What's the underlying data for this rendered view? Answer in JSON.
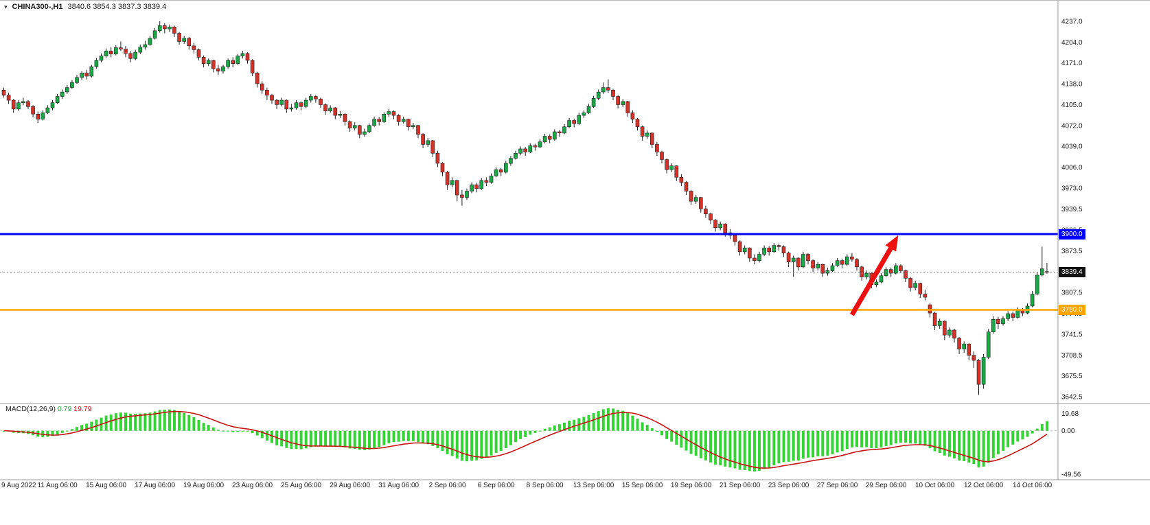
{
  "header": {
    "symbol_timeframe": "CHINA300-,H1",
    "ohlc": "3840.6 3854.3 3837.3 3839.4"
  },
  "macd": {
    "name": "MACD(12,26,9)",
    "value_main": "0.79",
    "value_signal": "19.79"
  },
  "colors": {
    "bull": "#18a846",
    "bear": "#d5322a",
    "wick": "#1f1f1f",
    "macd_hist": "#33d433",
    "macd_signal": "#c81414",
    "resistance": "#0000ff",
    "support": "#ffa500",
    "arrow": "#ee1010",
    "axis_text": "#1a1a1a",
    "separator": "#999999",
    "zero_line": "#c0c0c0",
    "last_price_line": "#707070"
  },
  "chart_data": {
    "type": "candlestick",
    "symbol": "CHINA300-",
    "timeframe": "H1",
    "last_price": 3839.4,
    "last_price_label": "3839.4",
    "price_axis_ticks": [
      4237.0,
      4204.0,
      4171.0,
      4138.0,
      4105.0,
      4072.0,
      4039.0,
      4006.0,
      3973.0,
      3939.5,
      3906.5,
      3873.5,
      3840.5,
      3807.5,
      3774.5,
      3741.5,
      3708.5,
      3675.5,
      3642.5
    ],
    "hlines": [
      {
        "price": 3900.0,
        "label": "3900.0",
        "color": "#0000ff",
        "name": "resistance-line"
      },
      {
        "price": 3780.0,
        "label": "3780.0",
        "color": "#ffa500",
        "name": "support-line"
      }
    ],
    "macd": {
      "params": "12,26,9",
      "ticks": [
        {
          "v": 19.68,
          "label": "19.68"
        },
        {
          "v": 0.0,
          "label": "0.00"
        },
        {
          "v": -49.56,
          "label": "-49.56"
        }
      ]
    },
    "annotation_arrow": {
      "from_bar": 174,
      "from_price": 3772,
      "to_bar": 183.5,
      "to_price": 3898,
      "color": "#ee1010"
    },
    "time_labels": [
      {
        "t": "9 Aug 2022",
        "bar": 1
      },
      {
        "t": "11 Aug 06:00",
        "bar": 11
      },
      {
        "t": "15 Aug 06:00",
        "bar": 21
      },
      {
        "t": "17 Aug 06:00",
        "bar": 31
      },
      {
        "t": "19 Aug 06:00",
        "bar": 41
      },
      {
        "t": "23 Aug 06:00",
        "bar": 51
      },
      {
        "t": "25 Aug 06:00",
        "bar": 61
      },
      {
        "t": "29 Aug 06:00",
        "bar": 71
      },
      {
        "t": "31 Aug 06:00",
        "bar": 81
      },
      {
        "t": "2 Sep 06:00",
        "bar": 91
      },
      {
        "t": "6 Sep 06:00",
        "bar": 101
      },
      {
        "t": "8 Sep 06:00",
        "bar": 111
      },
      {
        "t": "13 Sep 06:00",
        "bar": 121
      },
      {
        "t": "15 Sep 06:00",
        "bar": 131
      },
      {
        "t": "19 Sep 06:00",
        "bar": 141
      },
      {
        "t": "21 Sep 06:00",
        "bar": 151
      },
      {
        "t": "23 Sep 06:00",
        "bar": 161
      },
      {
        "t": "27 Sep 06:00",
        "bar": 171
      },
      {
        "t": "29 Sep 06:00",
        "bar": 181
      },
      {
        "t": "10 Oct 06:00",
        "bar": 191
      },
      {
        "t": "12 Oct 06:00",
        "bar": 201
      },
      {
        "t": "14 Oct 06:00",
        "bar": 211
      }
    ],
    "candles": [
      [
        4128,
        4132,
        4116,
        4120
      ],
      [
        4120,
        4124,
        4106,
        4112
      ],
      [
        4112,
        4114,
        4092,
        4098
      ],
      [
        4098,
        4112,
        4095,
        4108
      ],
      [
        4108,
        4116,
        4104,
        4110
      ],
      [
        4110,
        4112,
        4098,
        4102
      ],
      [
        4102,
        4104,
        4085,
        4090
      ],
      [
        4090,
        4094,
        4076,
        4082
      ],
      [
        4082,
        4096,
        4080,
        4092
      ],
      [
        4092,
        4104,
        4090,
        4100
      ],
      [
        4100,
        4112,
        4096,
        4108
      ],
      [
        4108,
        4122,
        4106,
        4118
      ],
      [
        4118,
        4129,
        4114,
        4125
      ],
      [
        4125,
        4136,
        4122,
        4132
      ],
      [
        4132,
        4144,
        4130,
        4140
      ],
      [
        4140,
        4152,
        4138,
        4148
      ],
      [
        4148,
        4158,
        4144,
        4155
      ],
      [
        4155,
        4160,
        4145,
        4150
      ],
      [
        4150,
        4168,
        4148,
        4165
      ],
      [
        4165,
        4179,
        4162,
        4175
      ],
      [
        4175,
        4186,
        4172,
        4182
      ],
      [
        4182,
        4194,
        4179,
        4190
      ],
      [
        4190,
        4196,
        4180,
        4185
      ],
      [
        4185,
        4199,
        4183,
        4195
      ],
      [
        4195,
        4205,
        4190,
        4193
      ],
      [
        4193,
        4198,
        4180,
        4186
      ],
      [
        4186,
        4190,
        4172,
        4178
      ],
      [
        4178,
        4192,
        4175,
        4188
      ],
      [
        4188,
        4200,
        4185,
        4196
      ],
      [
        4196,
        4206,
        4192,
        4200
      ],
      [
        4200,
        4214,
        4198,
        4210
      ],
      [
        4210,
        4226,
        4208,
        4222
      ],
      [
        4222,
        4237,
        4219,
        4230
      ],
      [
        4230,
        4234,
        4218,
        4225
      ],
      [
        4225,
        4232,
        4220,
        4228
      ],
      [
        4228,
        4230,
        4212,
        4218
      ],
      [
        4218,
        4220,
        4200,
        4205
      ],
      [
        4205,
        4214,
        4201,
        4210
      ],
      [
        4210,
        4212,
        4192,
        4198
      ],
      [
        4198,
        4203,
        4186,
        4192
      ],
      [
        4192,
        4194,
        4175,
        4180
      ],
      [
        4180,
        4183,
        4164,
        4170
      ],
      [
        4170,
        4178,
        4166,
        4175
      ],
      [
        4175,
        4176,
        4156,
        4162
      ],
      [
        4162,
        4168,
        4152,
        4158
      ],
      [
        4158,
        4168,
        4154,
        4165
      ],
      [
        4165,
        4178,
        4162,
        4175
      ],
      [
        4175,
        4180,
        4164,
        4170
      ],
      [
        4170,
        4185,
        4168,
        4182
      ],
      [
        4182,
        4190,
        4178,
        4186
      ],
      [
        4186,
        4188,
        4170,
        4175
      ],
      [
        4175,
        4177,
        4150,
        4155
      ],
      [
        4155,
        4157,
        4132,
        4138
      ],
      [
        4138,
        4142,
        4122,
        4128
      ],
      [
        4128,
        4132,
        4112,
        4120
      ],
      [
        4120,
        4122,
        4106,
        4112
      ],
      [
        4112,
        4114,
        4098,
        4105
      ],
      [
        4105,
        4116,
        4102,
        4112
      ],
      [
        4112,
        4113,
        4092,
        4098
      ],
      [
        4098,
        4106,
        4094,
        4100
      ],
      [
        4100,
        4112,
        4097,
        4108
      ],
      [
        4108,
        4110,
        4096,
        4102
      ],
      [
        4102,
        4116,
        4100,
        4112
      ],
      [
        4112,
        4122,
        4108,
        4118
      ],
      [
        4118,
        4120,
        4108,
        4114
      ],
      [
        4114,
        4116,
        4100,
        4105
      ],
      [
        4105,
        4107,
        4089,
        4095
      ],
      [
        4095,
        4104,
        4092,
        4100
      ],
      [
        4100,
        4101,
        4082,
        4088
      ],
      [
        4088,
        4095,
        4084,
        4090
      ],
      [
        4090,
        4091,
        4072,
        4078
      ],
      [
        4078,
        4080,
        4062,
        4068
      ],
      [
        4068,
        4077,
        4064,
        4072
      ],
      [
        4072,
        4073,
        4052,
        4058
      ],
      [
        4058,
        4067,
        4054,
        4062
      ],
      [
        4062,
        4075,
        4060,
        4072
      ],
      [
        4072,
        4086,
        4070,
        4082
      ],
      [
        4082,
        4085,
        4072,
        4078
      ],
      [
        4078,
        4093,
        4076,
        4090
      ],
      [
        4090,
        4098,
        4086,
        4094
      ],
      [
        4094,
        4096,
        4082,
        4088
      ],
      [
        4088,
        4090,
        4072,
        4078
      ],
      [
        4078,
        4086,
        4075,
        4082
      ],
      [
        4082,
        4083,
        4064,
        4070
      ],
      [
        4070,
        4076,
        4066,
        4072
      ],
      [
        4072,
        4073,
        4052,
        4058
      ],
      [
        4058,
        4060,
        4036,
        4042
      ],
      [
        4042,
        4052,
        4038,
        4048
      ],
      [
        4048,
        4049,
        4022,
        4028
      ],
      [
        4028,
        4032,
        4006,
        4012
      ],
      [
        4012,
        4014,
        3992,
        3998
      ],
      [
        3998,
        4000,
        3970,
        3978
      ],
      [
        3978,
        3990,
        3974,
        3985
      ],
      [
        3985,
        3986,
        3952,
        3962
      ],
      [
        3962,
        3970,
        3945,
        3958
      ],
      [
        3958,
        3972,
        3954,
        3968
      ],
      [
        3968,
        3982,
        3965,
        3978
      ],
      [
        3978,
        3981,
        3966,
        3972
      ],
      [
        3972,
        3989,
        3970,
        3985
      ],
      [
        3985,
        3990,
        3976,
        3982
      ],
      [
        3982,
        3996,
        3980,
        3992
      ],
      [
        3992,
        4006,
        3990,
        4002
      ],
      [
        4002,
        4005,
        3992,
        3998
      ],
      [
        3998,
        4016,
        3996,
        4012
      ],
      [
        4012,
        4024,
        4008,
        4020
      ],
      [
        4020,
        4032,
        4018,
        4028
      ],
      [
        4028,
        4039,
        4025,
        4035
      ],
      [
        4035,
        4038,
        4024,
        4030
      ],
      [
        4030,
        4044,
        4028,
        4040
      ],
      [
        4040,
        4043,
        4032,
        4038
      ],
      [
        4038,
        4050,
        4036,
        4046
      ],
      [
        4046,
        4059,
        4044,
        4055
      ],
      [
        4055,
        4058,
        4044,
        4050
      ],
      [
        4050,
        4066,
        4048,
        4062
      ],
      [
        4062,
        4065,
        4054,
        4060
      ],
      [
        4060,
        4074,
        4058,
        4070
      ],
      [
        4070,
        4084,
        4068,
        4080
      ],
      [
        4080,
        4083,
        4069,
        4075
      ],
      [
        4075,
        4092,
        4073,
        4088
      ],
      [
        4088,
        4096,
        4084,
        4092
      ],
      [
        4092,
        4106,
        4090,
        4102
      ],
      [
        4102,
        4119,
        4100,
        4115
      ],
      [
        4115,
        4129,
        4112,
        4125
      ],
      [
        4125,
        4140,
        4122,
        4132
      ],
      [
        4132,
        4145,
        4124,
        4128
      ],
      [
        4128,
        4130,
        4112,
        4118
      ],
      [
        4118,
        4120,
        4099,
        4105
      ],
      [
        4105,
        4114,
        4101,
        4110
      ],
      [
        4110,
        4111,
        4086,
        4092
      ],
      [
        4092,
        4096,
        4076,
        4082
      ],
      [
        4082,
        4084,
        4064,
        4070
      ],
      [
        4070,
        4072,
        4048,
        4055
      ],
      [
        4055,
        4064,
        4051,
        4060
      ],
      [
        4060,
        4061,
        4036,
        4042
      ],
      [
        4042,
        4046,
        4024,
        4030
      ],
      [
        4030,
        4032,
        4012,
        4018
      ],
      [
        4018,
        4020,
        3996,
        4002
      ],
      [
        4002,
        4012,
        3998,
        4008
      ],
      [
        4008,
        4009,
        3984,
        3990
      ],
      [
        3990,
        3995,
        3976,
        3982
      ],
      [
        3982,
        3984,
        3962,
        3968
      ],
      [
        3968,
        3970,
        3946,
        3952
      ],
      [
        3952,
        3962,
        3948,
        3958
      ],
      [
        3958,
        3959,
        3934,
        3940
      ],
      [
        3940,
        3945,
        3926,
        3932
      ],
      [
        3932,
        3934,
        3916,
        3922
      ],
      [
        3922,
        3924,
        3904,
        3910
      ],
      [
        3910,
        3920,
        3906,
        3916
      ],
      [
        3916,
        3917,
        3896,
        3902
      ],
      [
        3902,
        3908,
        3892,
        3898
      ],
      [
        3898,
        3900,
        3882,
        3888
      ],
      [
        3888,
        3890,
        3866,
        3872
      ],
      [
        3872,
        3882,
        3868,
        3878
      ],
      [
        3878,
        3879,
        3856,
        3862
      ],
      [
        3862,
        3868,
        3852,
        3858
      ],
      [
        3858,
        3872,
        3855,
        3868
      ],
      [
        3868,
        3882,
        3865,
        3878
      ],
      [
        3878,
        3881,
        3866,
        3872
      ],
      [
        3872,
        3886,
        3870,
        3882
      ],
      [
        3882,
        3885,
        3874,
        3880
      ],
      [
        3880,
        3882,
        3864,
        3870
      ],
      [
        3870,
        3872,
        3848,
        3856
      ],
      [
        3856,
        3866,
        3832,
        3862
      ],
      [
        3862,
        3863,
        3842,
        3848
      ],
      [
        3848,
        3872,
        3846,
        3868
      ],
      [
        3868,
        3870,
        3852,
        3858
      ],
      [
        3858,
        3860,
        3840,
        3846
      ],
      [
        3846,
        3856,
        3842,
        3852
      ],
      [
        3852,
        3853,
        3832,
        3838
      ],
      [
        3838,
        3847,
        3834,
        3842
      ],
      [
        3842,
        3854,
        3840,
        3850
      ],
      [
        3850,
        3862,
        3848,
        3858
      ],
      [
        3858,
        3861,
        3846,
        3852
      ],
      [
        3852,
        3868,
        3850,
        3864
      ],
      [
        3864,
        3870,
        3856,
        3860
      ],
      [
        3860,
        3862,
        3842,
        3848
      ],
      [
        3848,
        3850,
        3826,
        3832
      ],
      [
        3832,
        3842,
        3828,
        3838
      ],
      [
        3838,
        3839,
        3814,
        3820
      ],
      [
        3820,
        3828,
        3816,
        3824
      ],
      [
        3824,
        3838,
        3822,
        3834
      ],
      [
        3834,
        3848,
        3832,
        3844
      ],
      [
        3844,
        3847,
        3832,
        3838
      ],
      [
        3838,
        3854,
        3836,
        3850
      ],
      [
        3850,
        3852,
        3838,
        3842
      ],
      [
        3842,
        3844,
        3824,
        3830
      ],
      [
        3830,
        3832,
        3809,
        3815
      ],
      [
        3815,
        3826,
        3811,
        3822
      ],
      [
        3822,
        3823,
        3799,
        3805
      ],
      [
        3805,
        3812,
        3795,
        3800
      ],
      [
        3788,
        3790,
        3768,
        3775
      ],
      [
        3775,
        3777,
        3748,
        3755
      ],
      [
        3755,
        3766,
        3750,
        3762
      ],
      [
        3762,
        3763,
        3732,
        3740
      ],
      [
        3740,
        3752,
        3736,
        3748
      ],
      [
        3748,
        3750,
        3728,
        3735
      ],
      [
        3735,
        3737,
        3710,
        3718
      ],
      [
        3718,
        3730,
        3712,
        3726
      ],
      [
        3726,
        3727,
        3700,
        3708
      ],
      [
        3708,
        3714,
        3688,
        3700
      ],
      [
        3700,
        3702,
        3645,
        3662
      ],
      [
        3662,
        3710,
        3655,
        3705
      ],
      [
        3705,
        3750,
        3702,
        3745
      ],
      [
        3745,
        3770,
        3742,
        3765
      ],
      [
        3765,
        3769,
        3750,
        3758
      ],
      [
        3758,
        3770,
        3755,
        3766
      ],
      [
        3766,
        3778,
        3762,
        3774
      ],
      [
        3774,
        3777,
        3762,
        3768
      ],
      [
        3768,
        3784,
        3766,
        3780
      ],
      [
        3780,
        3783,
        3770,
        3775
      ],
      [
        3775,
        3790,
        3773,
        3786
      ],
      [
        3786,
        3810,
        3784,
        3805
      ],
      [
        3805,
        3840,
        3803,
        3835
      ],
      [
        3835,
        3880,
        3833,
        3845
      ],
      [
        3840.6,
        3854.3,
        3837.3,
        3839.4
      ]
    ]
  }
}
